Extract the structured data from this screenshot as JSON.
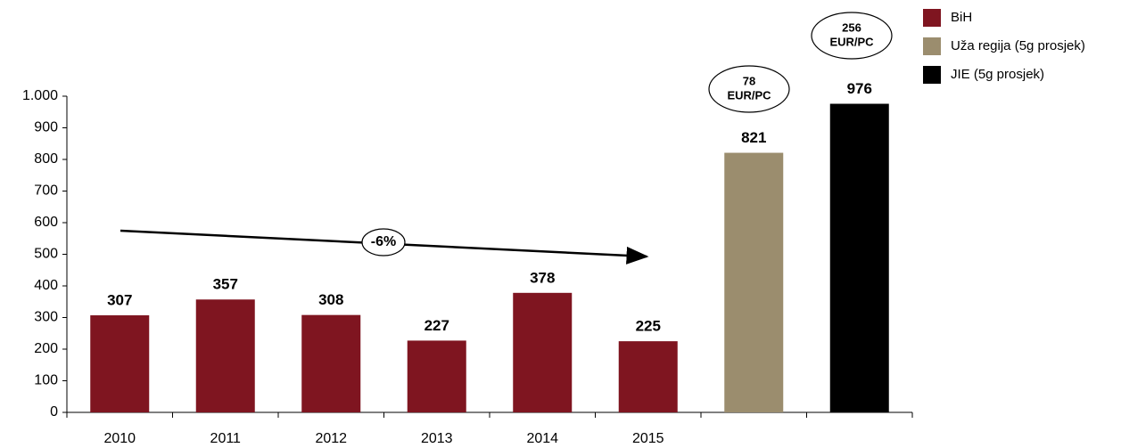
{
  "chart_data": {
    "type": "bar",
    "categories": [
      "2010",
      "2011",
      "2012",
      "2013",
      "2014",
      "2015",
      null,
      null
    ],
    "series": [
      {
        "name": "BiH",
        "color": "#7f1520",
        "values": [
          307,
          357,
          308,
          227,
          378,
          225,
          null,
          null
        ]
      },
      {
        "name": "Uža regija (5g prosjek)",
        "color": "#9b8d6e",
        "values": [
          null,
          null,
          null,
          null,
          null,
          null,
          821,
          null
        ]
      },
      {
        "name": "JIE (5g prosjek)",
        "color": "#000000",
        "values": [
          null,
          null,
          null,
          null,
          null,
          null,
          null,
          976
        ]
      }
    ],
    "ylim": [
      0,
      1000
    ],
    "yticks": [
      0,
      100,
      200,
      300,
      400,
      500,
      600,
      700,
      800,
      900,
      {
        "value": 1000,
        "label": "1.000"
      }
    ],
    "annotations": [
      {
        "lines": [
          "-6%"
        ]
      },
      {
        "lines": [
          "78",
          "EUR/PC"
        ]
      },
      {
        "lines": [
          "256",
          "EUR/PC"
        ]
      }
    ]
  }
}
